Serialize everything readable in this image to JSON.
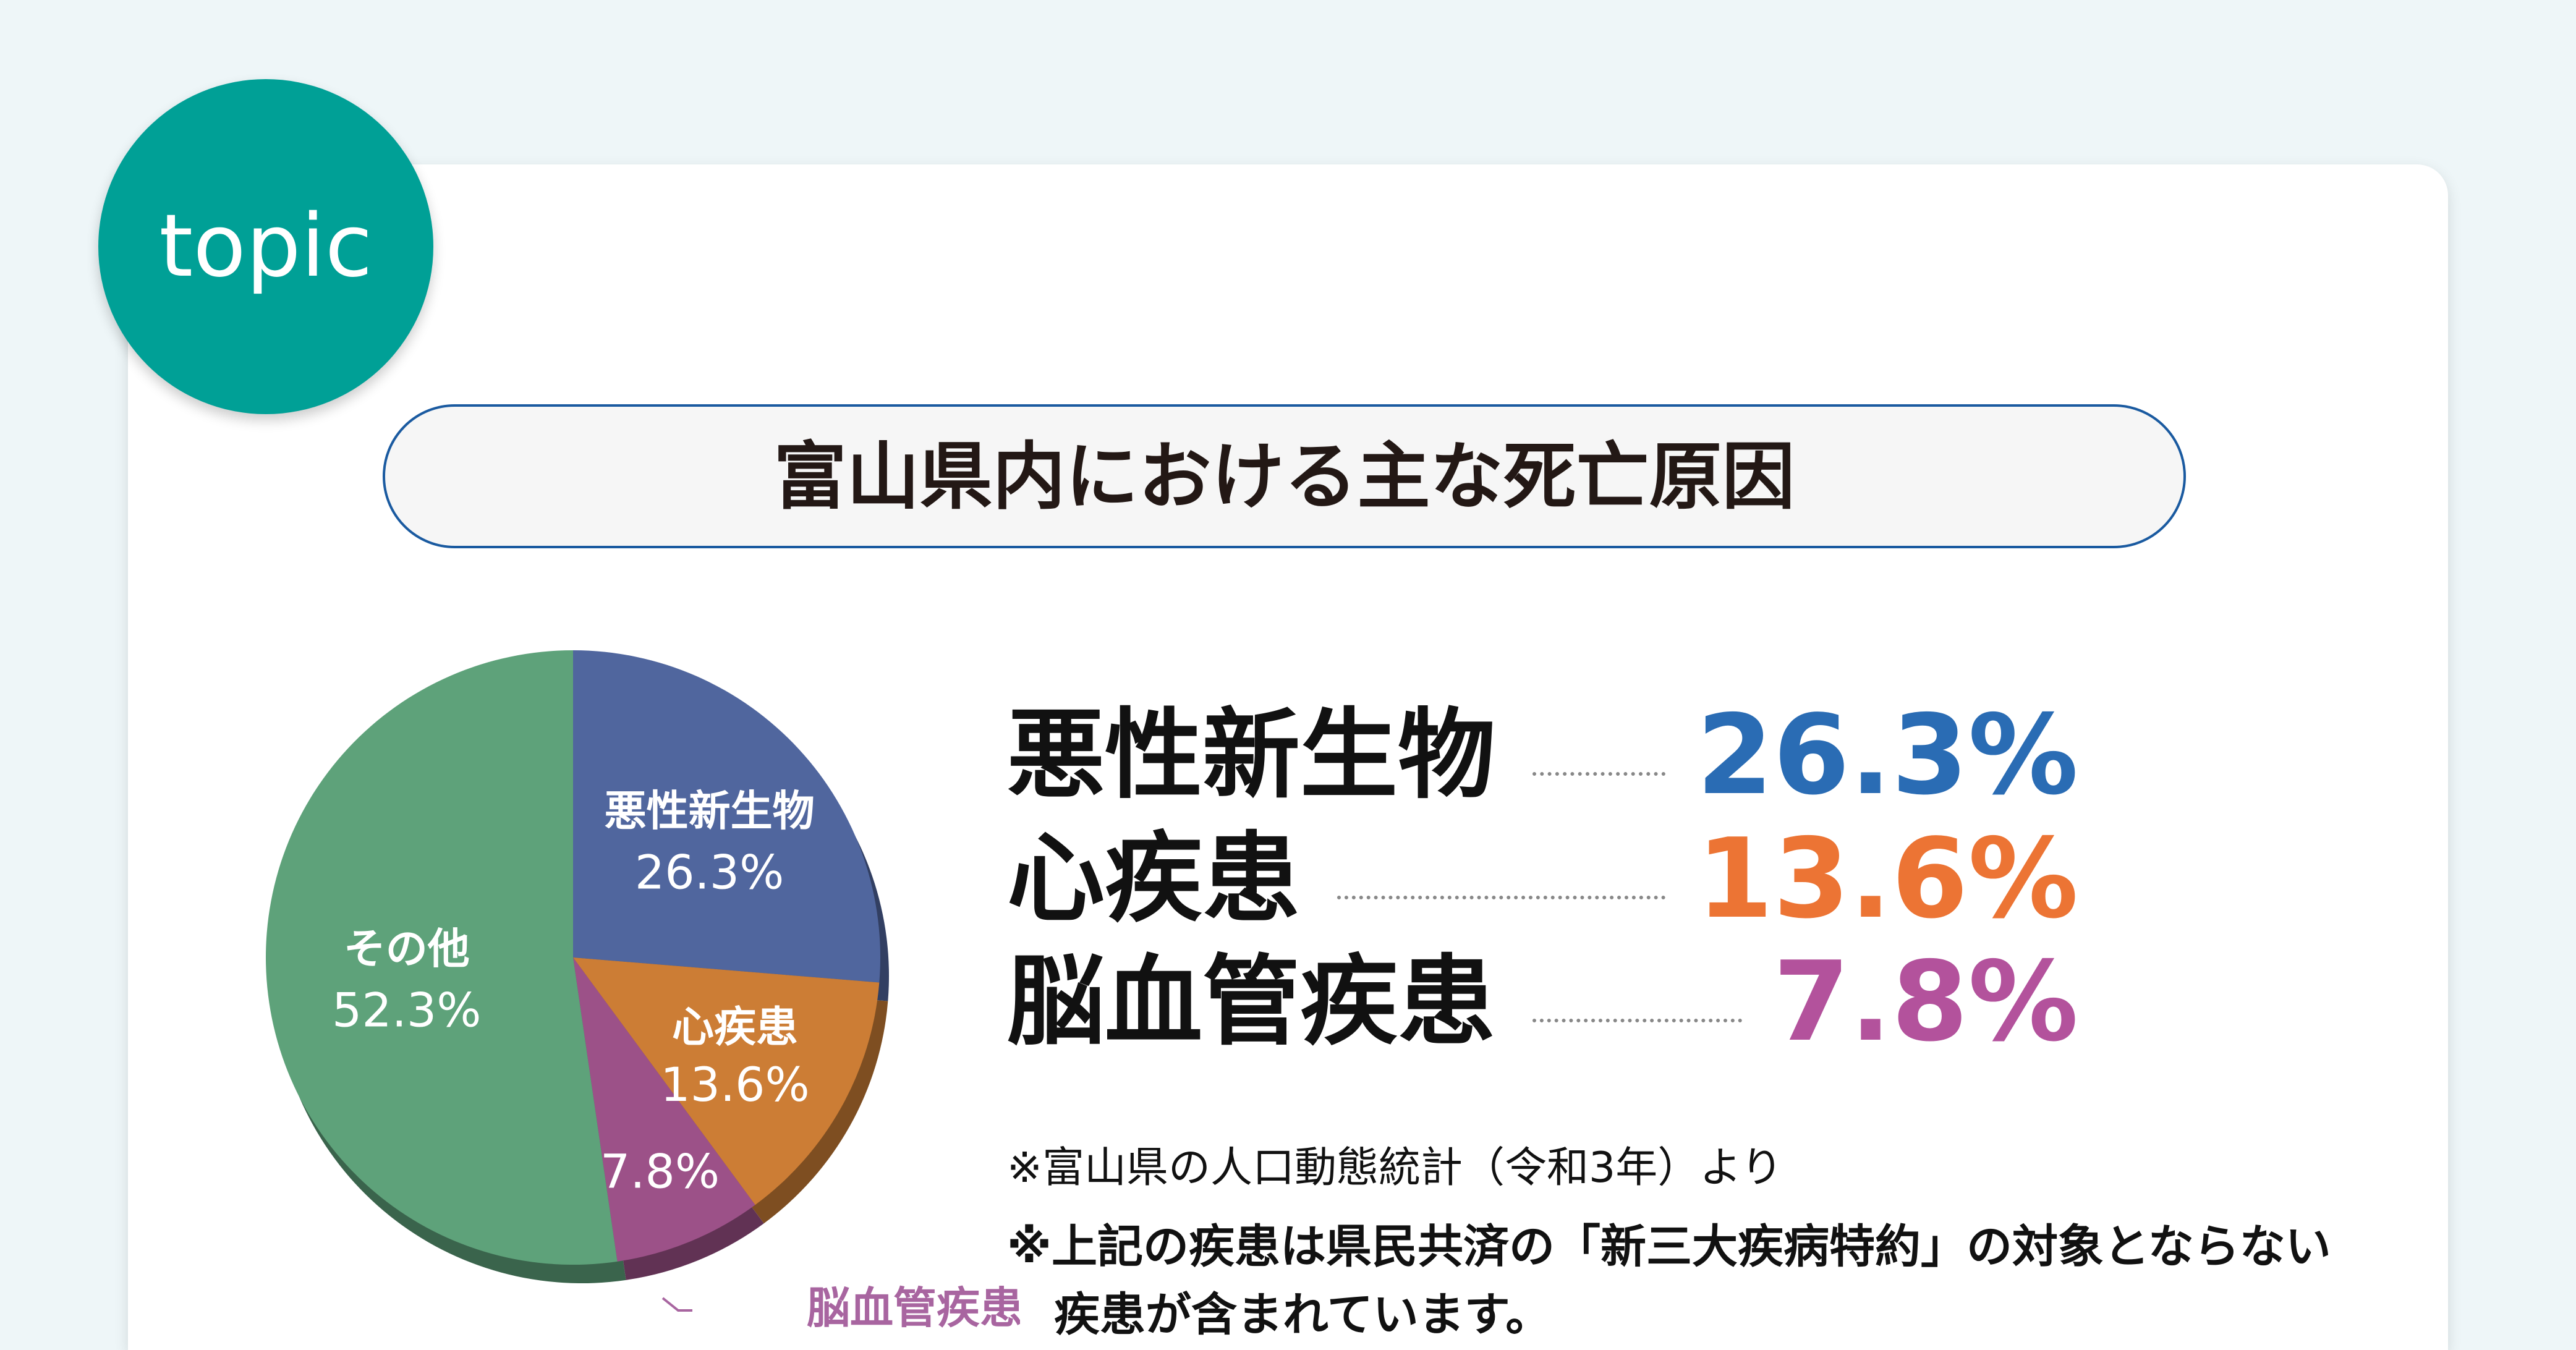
{
  "badge": "topic",
  "title": "富山県内における主な死亡原因",
  "chart_data": {
    "type": "pie",
    "title": "",
    "slices": [
      {
        "label": "悪性新生物",
        "value": 26.3,
        "text": "26.3%",
        "color": "#50669e"
      },
      {
        "label": "心疾患",
        "value": 13.6,
        "text": "13.6%",
        "color": "#cc7d35"
      },
      {
        "label": "脳血管疾患",
        "value": 7.8,
        "text": "7.8%",
        "color": "#9c5188"
      },
      {
        "label": "その他",
        "value": 52.3,
        "text": "52.3%",
        "color": "#5ea27a"
      }
    ],
    "start": "top",
    "direction": "clockwise",
    "label_color_callout": "#a865a0"
  },
  "legend": [
    {
      "name": "悪性新生物",
      "pct": "26.3%",
      "color": "#2a6cb4"
    },
    {
      "name": "心疾患",
      "pct": "13.6%",
      "color": "#ec7434"
    },
    {
      "name": "脳血管疾患",
      "pct": "7.8%",
      "color": "#b3529c"
    }
  ],
  "notes": {
    "source": "※富山県の人口動態統計（令和3年）より",
    "line1": "※上記の疾患は県民共済の「新三大疾病特約」の対象とならない",
    "line2": "疾患が含まれています。"
  }
}
